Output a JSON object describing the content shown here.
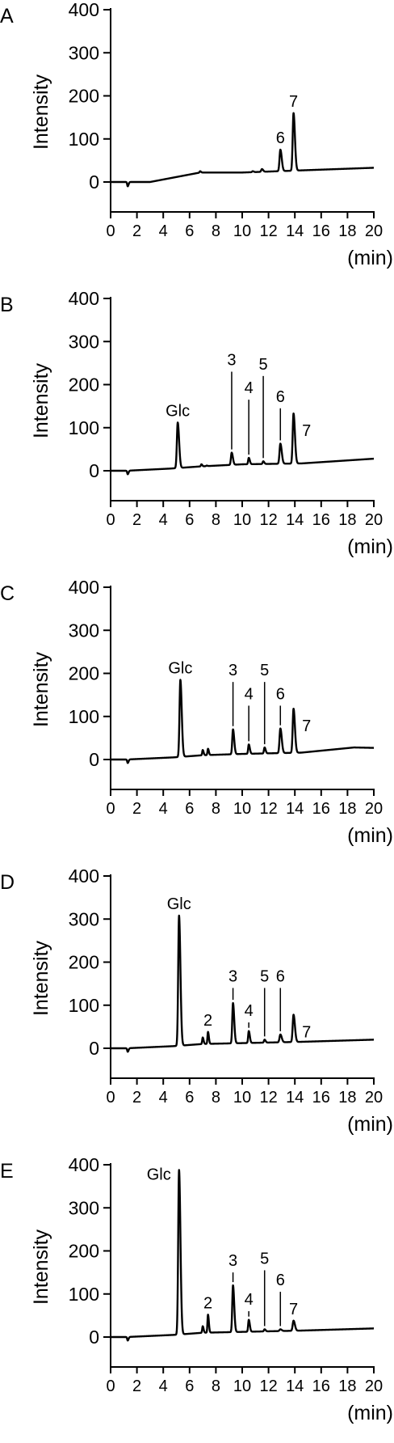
{
  "chart_data": [
    {
      "type": "line",
      "panel_label": "A",
      "ylabel": "Intensity",
      "xlabel": "(min)",
      "xlim": [
        0,
        20
      ],
      "ylim": [
        -30,
        400
      ],
      "x_ticks": [
        0,
        2,
        4,
        6,
        8,
        10,
        12,
        14,
        16,
        18,
        20
      ],
      "y_ticks": [
        0,
        100,
        200,
        300,
        400
      ],
      "baseline": [
        [
          0,
          0
        ],
        [
          1.2,
          0
        ],
        [
          3,
          0
        ],
        [
          6.8,
          22
        ],
        [
          10,
          22
        ],
        [
          14.5,
          27
        ],
        [
          20,
          33
        ]
      ],
      "peaks": [
        {
          "x": 1.3,
          "y": -10,
          "w": 0.05
        },
        {
          "x": 6.8,
          "y": 25,
          "w": 0.05
        },
        {
          "x": 7.2,
          "y": 22,
          "w": 0.05
        },
        {
          "x": 10.8,
          "y": 25,
          "w": 0.06
        },
        {
          "x": 11.5,
          "y": 30,
          "w": 0.07
        },
        {
          "x": 12.9,
          "y": 75,
          "w": 0.08
        },
        {
          "x": 13.9,
          "y": 160,
          "w": 0.08
        }
      ],
      "annotations": [
        {
          "text": "6",
          "x": 12.9,
          "y": 75,
          "line": false
        },
        {
          "text": "7",
          "x": 13.9,
          "y": 160,
          "line": false
        }
      ]
    },
    {
      "type": "line",
      "panel_label": "B",
      "ylabel": "Intensity",
      "xlabel": "(min)",
      "xlim": [
        0,
        20
      ],
      "ylim": [
        -30,
        400
      ],
      "x_ticks": [
        0,
        2,
        4,
        6,
        8,
        10,
        12,
        14,
        16,
        18,
        20
      ],
      "y_ticks": [
        0,
        100,
        200,
        300,
        400
      ],
      "baseline": [
        [
          0,
          0
        ],
        [
          1.2,
          0
        ],
        [
          4.5,
          5
        ],
        [
          6.8,
          10
        ],
        [
          10,
          15
        ],
        [
          14.5,
          17
        ],
        [
          20,
          28
        ]
      ],
      "peaks": [
        {
          "x": 1.3,
          "y": -8,
          "w": 0.05
        },
        {
          "x": 5.1,
          "y": 112,
          "w": 0.08
        },
        {
          "x": 6.9,
          "y": 15,
          "w": 0.05
        },
        {
          "x": 7.3,
          "y": 12,
          "w": 0.05
        },
        {
          "x": 9.2,
          "y": 42,
          "w": 0.07
        },
        {
          "x": 10.5,
          "y": 30,
          "w": 0.06
        },
        {
          "x": 11.6,
          "y": 22,
          "w": 0.06
        },
        {
          "x": 12.9,
          "y": 63,
          "w": 0.08
        },
        {
          "x": 13.9,
          "y": 133,
          "w": 0.08
        }
      ],
      "annotations": [
        {
          "text": "Glc",
          "x": 5.1,
          "y": 112,
          "line": false
        },
        {
          "text": "3",
          "x": 9.2,
          "y": 42,
          "line": true,
          "top": 230
        },
        {
          "text": "4",
          "x": 10.5,
          "y": 30,
          "line": true,
          "top": 165
        },
        {
          "text": "5",
          "x": 11.6,
          "y": 22,
          "line": true,
          "top": 220
        },
        {
          "text": "6",
          "x": 12.9,
          "y": 63,
          "line": true,
          "top": 145
        },
        {
          "text": "7",
          "x": 14.3,
          "y": 133,
          "line": false,
          "side": true
        }
      ]
    },
    {
      "type": "line",
      "panel_label": "C",
      "ylabel": "Intensity",
      "xlabel": "(min)",
      "xlim": [
        0,
        20
      ],
      "ylim": [
        -30,
        400
      ],
      "x_ticks": [
        0,
        2,
        4,
        6,
        8,
        10,
        12,
        14,
        16,
        18,
        20
      ],
      "y_ticks": [
        0,
        100,
        200,
        300,
        400
      ],
      "baseline": [
        [
          0,
          0
        ],
        [
          1.2,
          0
        ],
        [
          4.8,
          5
        ],
        [
          7,
          10
        ],
        [
          10,
          13
        ],
        [
          14.5,
          16
        ],
        [
          18.5,
          28
        ],
        [
          20,
          27
        ]
      ],
      "peaks": [
        {
          "x": 1.3,
          "y": -8,
          "w": 0.05
        },
        {
          "x": 5.3,
          "y": 185,
          "w": 0.08
        },
        {
          "x": 7.0,
          "y": 22,
          "w": 0.05
        },
        {
          "x": 7.4,
          "y": 25,
          "w": 0.05
        },
        {
          "x": 9.3,
          "y": 70,
          "w": 0.07
        },
        {
          "x": 10.5,
          "y": 35,
          "w": 0.06
        },
        {
          "x": 11.7,
          "y": 28,
          "w": 0.06
        },
        {
          "x": 12.9,
          "y": 72,
          "w": 0.08
        },
        {
          "x": 13.9,
          "y": 118,
          "w": 0.08
        }
      ],
      "annotations": [
        {
          "text": "Glc",
          "x": 5.3,
          "y": 185,
          "line": false
        },
        {
          "text": "3",
          "x": 9.3,
          "y": 70,
          "line": true,
          "top": 180
        },
        {
          "text": "4",
          "x": 10.5,
          "y": 35,
          "line": true,
          "top": 125
        },
        {
          "text": "5",
          "x": 11.7,
          "y": 28,
          "line": true,
          "top": 180
        },
        {
          "text": "6",
          "x": 12.9,
          "y": 72,
          "line": true,
          "top": 125
        },
        {
          "text": "7",
          "x": 14.3,
          "y": 118,
          "line": false,
          "side": true
        }
      ]
    },
    {
      "type": "line",
      "panel_label": "D",
      "ylabel": "Intensity",
      "xlabel": "(min)",
      "xlim": [
        0,
        20
      ],
      "ylim": [
        -30,
        400
      ],
      "x_ticks": [
        0,
        2,
        4,
        6,
        8,
        10,
        12,
        14,
        16,
        18,
        20
      ],
      "y_ticks": [
        0,
        100,
        200,
        300,
        400
      ],
      "baseline": [
        [
          0,
          0
        ],
        [
          1.2,
          0
        ],
        [
          4.8,
          5
        ],
        [
          7,
          10
        ],
        [
          10,
          12
        ],
        [
          14.5,
          15
        ],
        [
          20,
          20
        ]
      ],
      "peaks": [
        {
          "x": 1.3,
          "y": -8,
          "w": 0.05
        },
        {
          "x": 5.2,
          "y": 308,
          "w": 0.08
        },
        {
          "x": 7.0,
          "y": 25,
          "w": 0.05
        },
        {
          "x": 7.4,
          "y": 38,
          "w": 0.05
        },
        {
          "x": 9.3,
          "y": 105,
          "w": 0.07
        },
        {
          "x": 10.5,
          "y": 40,
          "w": 0.06
        },
        {
          "x": 11.7,
          "y": 20,
          "w": 0.06
        },
        {
          "x": 12.9,
          "y": 32,
          "w": 0.08
        },
        {
          "x": 13.9,
          "y": 78,
          "w": 0.08
        }
      ],
      "annotations": [
        {
          "text": "Glc",
          "x": 5.2,
          "y": 308,
          "line": false
        },
        {
          "text": "2",
          "x": 7.4,
          "y": 38,
          "line": false
        },
        {
          "text": "3",
          "x": 9.3,
          "y": 105,
          "line": true,
          "top": 140
        },
        {
          "text": "4",
          "x": 10.5,
          "y": 40,
          "line": true,
          "top": 60
        },
        {
          "text": "5",
          "x": 11.7,
          "y": 20,
          "line": true,
          "top": 140
        },
        {
          "text": "6",
          "x": 12.9,
          "y": 32,
          "line": true,
          "top": 140
        },
        {
          "text": "7",
          "x": 14.3,
          "y": 78,
          "line": false,
          "side": true
        }
      ]
    },
    {
      "type": "line",
      "panel_label": "E",
      "ylabel": "Intensity",
      "xlabel": "(min)",
      "xlim": [
        0,
        20
      ],
      "ylim": [
        -30,
        400
      ],
      "x_ticks": [
        0,
        2,
        4,
        6,
        8,
        10,
        12,
        14,
        16,
        18,
        20
      ],
      "y_ticks": [
        0,
        100,
        200,
        300,
        400
      ],
      "baseline": [
        [
          0,
          0
        ],
        [
          1.2,
          0
        ],
        [
          4.8,
          5
        ],
        [
          7,
          10
        ],
        [
          10,
          12
        ],
        [
          14.5,
          15
        ],
        [
          20,
          20
        ]
      ],
      "peaks": [
        {
          "x": 1.3,
          "y": -8,
          "w": 0.05
        },
        {
          "x": 5.2,
          "y": 388,
          "w": 0.08
        },
        {
          "x": 7.0,
          "y": 25,
          "w": 0.05
        },
        {
          "x": 7.4,
          "y": 52,
          "w": 0.05
        },
        {
          "x": 9.3,
          "y": 120,
          "w": 0.07
        },
        {
          "x": 10.5,
          "y": 40,
          "w": 0.06
        },
        {
          "x": 11.7,
          "y": 18,
          "w": 0.06
        },
        {
          "x": 12.9,
          "y": 18,
          "w": 0.08
        },
        {
          "x": 13.9,
          "y": 38,
          "w": 0.08
        }
      ],
      "annotations": [
        {
          "text": "Glc",
          "x": 5.2,
          "y": 388,
          "line": false,
          "left": true
        },
        {
          "text": "2",
          "x": 7.4,
          "y": 52,
          "line": false
        },
        {
          "text": "3",
          "x": 9.3,
          "y": 120,
          "line": true,
          "top": 150
        },
        {
          "text": "4",
          "x": 10.5,
          "y": 40,
          "line": true,
          "top": 60
        },
        {
          "text": "5",
          "x": 11.7,
          "y": 18,
          "line": true,
          "top": 155
        },
        {
          "text": "6",
          "x": 12.9,
          "y": 18,
          "line": true,
          "top": 105
        },
        {
          "text": "7",
          "x": 13.9,
          "y": 38,
          "line": false
        }
      ]
    }
  ]
}
